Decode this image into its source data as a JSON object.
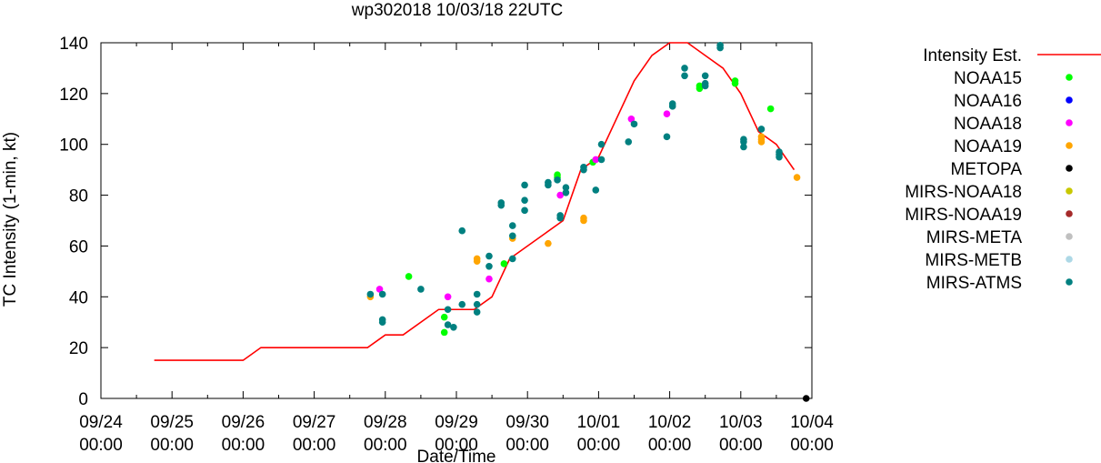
{
  "chart_data": {
    "type": "scatter",
    "title": "wp302018 10/03/18 22UTC",
    "xlabel": "Date/Time",
    "ylabel": "TC Intensity (1-min, kt)",
    "xlim": [
      0,
      10
    ],
    "ylim": [
      0,
      140
    ],
    "x_unit": "days since 09/24 00:00",
    "yticks": [
      0,
      20,
      40,
      60,
      80,
      100,
      120,
      140
    ],
    "xtick_labels": [
      {
        "date": "09/24",
        "time": "00:00"
      },
      {
        "date": "09/25",
        "time": "00:00"
      },
      {
        "date": "09/26",
        "time": "00:00"
      },
      {
        "date": "09/27",
        "time": "00:00"
      },
      {
        "date": "09/28",
        "time": "00:00"
      },
      {
        "date": "09/29",
        "time": "00:00"
      },
      {
        "date": "09/30",
        "time": "00:00"
      },
      {
        "date": "10/01",
        "time": "00:00"
      },
      {
        "date": "10/02",
        "time": "00:00"
      },
      {
        "date": "10/03",
        "time": "00:00"
      },
      {
        "date": "10/04",
        "time": "00:00"
      }
    ],
    "grid": false,
    "legend_position": "right",
    "intensity_line": {
      "name": "Intensity Est.",
      "color": "#ff0000",
      "points": [
        [
          0.75,
          15
        ],
        [
          2.0,
          15
        ],
        [
          2.25,
          20
        ],
        [
          3.75,
          20
        ],
        [
          4.0,
          25
        ],
        [
          4.25,
          25
        ],
        [
          4.75,
          35
        ],
        [
          5.25,
          35
        ],
        [
          5.5,
          40
        ],
        [
          5.75,
          55
        ],
        [
          6.25,
          65
        ],
        [
          6.5,
          70
        ],
        [
          6.75,
          90
        ],
        [
          7.0,
          95
        ],
        [
          7.5,
          125
        ],
        [
          7.75,
          135
        ],
        [
          8.0,
          140
        ],
        [
          8.25,
          140
        ],
        [
          8.5,
          135
        ],
        [
          8.75,
          130
        ],
        [
          9.0,
          120
        ],
        [
          9.25,
          105
        ],
        [
          9.5,
          100
        ],
        [
          9.75,
          90
        ]
      ]
    },
    "series": [
      {
        "name": "NOAA15",
        "color": "#00ff00",
        "points": [
          [
            4.33,
            48
          ],
          [
            4.83,
            26
          ],
          [
            4.83,
            32
          ],
          [
            5.67,
            53
          ],
          [
            6.42,
            88
          ],
          [
            6.42,
            87
          ],
          [
            6.92,
            93
          ],
          [
            8.42,
            122
          ],
          [
            8.42,
            123
          ],
          [
            8.92,
            125
          ],
          [
            8.92,
            124
          ],
          [
            9.42,
            114
          ]
        ]
      },
      {
        "name": "NOAA16",
        "color": "#0000ff",
        "points": []
      },
      {
        "name": "NOAA18",
        "color": "#ff00ff",
        "points": [
          [
            3.92,
            43
          ],
          [
            4.88,
            40
          ],
          [
            5.46,
            47
          ],
          [
            6.46,
            80
          ],
          [
            6.96,
            94
          ],
          [
            7.46,
            110
          ],
          [
            7.96,
            112
          ]
        ]
      },
      {
        "name": "NOAA19",
        "color": "#ffa500",
        "points": [
          [
            3.79,
            40
          ],
          [
            5.29,
            54
          ],
          [
            5.29,
            55
          ],
          [
            5.79,
            63
          ],
          [
            6.29,
            61
          ],
          [
            6.79,
            70
          ],
          [
            6.79,
            71
          ],
          [
            9.29,
            101
          ],
          [
            9.29,
            103
          ],
          [
            9.29,
            102
          ],
          [
            9.79,
            87
          ]
        ]
      },
      {
        "name": "METOPA",
        "color": "#000000",
        "points": [
          [
            9.92,
            0
          ]
        ]
      },
      {
        "name": "MIRS-NOAA18",
        "color": "#c8c800",
        "points": []
      },
      {
        "name": "MIRS-NOAA19",
        "color": "#a52a2a",
        "points": []
      },
      {
        "name": "MIRS-META",
        "color": "#c0c0c0",
        "points": []
      },
      {
        "name": "MIRS-METB",
        "color": "#add8e6",
        "points": []
      },
      {
        "name": "MIRS-ATMS",
        "color": "#008080",
        "points": [
          [
            3.79,
            41
          ],
          [
            3.96,
            41
          ],
          [
            3.96,
            31
          ],
          [
            3.96,
            30
          ],
          [
            4.5,
            43
          ],
          [
            4.88,
            35
          ],
          [
            4.88,
            29
          ],
          [
            4.96,
            28
          ],
          [
            5.08,
            37
          ],
          [
            5.08,
            66
          ],
          [
            5.29,
            41
          ],
          [
            5.29,
            37
          ],
          [
            5.29,
            34
          ],
          [
            5.46,
            52
          ],
          [
            5.46,
            56
          ],
          [
            5.63,
            77
          ],
          [
            5.63,
            76
          ],
          [
            5.79,
            64
          ],
          [
            5.79,
            68
          ],
          [
            5.79,
            55
          ],
          [
            5.96,
            84
          ],
          [
            5.96,
            78
          ],
          [
            5.96,
            74
          ],
          [
            6.29,
            85
          ],
          [
            6.29,
            84
          ],
          [
            6.42,
            86
          ],
          [
            6.46,
            72
          ],
          [
            6.46,
            71
          ],
          [
            6.54,
            83
          ],
          [
            6.54,
            81
          ],
          [
            6.79,
            91
          ],
          [
            6.79,
            90
          ],
          [
            6.96,
            82
          ],
          [
            7.04,
            94
          ],
          [
            7.04,
            100
          ],
          [
            7.42,
            101
          ],
          [
            7.5,
            108
          ],
          [
            7.96,
            103
          ],
          [
            8.04,
            116
          ],
          [
            8.04,
            115
          ],
          [
            8.21,
            130
          ],
          [
            8.21,
            127
          ],
          [
            8.5,
            127
          ],
          [
            8.5,
            124
          ],
          [
            8.5,
            123
          ],
          [
            8.71,
            139
          ],
          [
            8.71,
            138
          ],
          [
            9.04,
            102
          ],
          [
            9.04,
            101
          ],
          [
            9.04,
            99
          ],
          [
            9.29,
            106
          ],
          [
            9.54,
            97
          ],
          [
            9.54,
            96
          ],
          [
            9.54,
            95
          ]
        ]
      }
    ]
  }
}
